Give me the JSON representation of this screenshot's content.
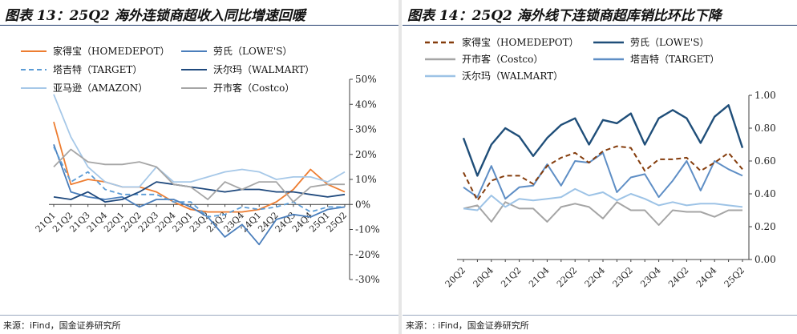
{
  "charts_page": {
    "left_title": "图表 13：25Q2 海外连锁商超收入同比增速回暖",
    "right_title": "图表 14：25Q2 海外线下连锁商超库销比环比下降",
    "left_source": "来源：iFind，国金证券研究所",
    "right_source": "来源：: iFind，国金证券研究所"
  },
  "chart_data": [
    {
      "type": "line",
      "title": "图表 13：25Q2 海外连锁商超收入同比增速回暖",
      "categories": [
        "21Q1",
        "21Q2",
        "21Q3",
        "21Q4",
        "22Q1",
        "22Q2",
        "22Q3",
        "22Q4",
        "23Q1",
        "23Q2",
        "23Q3",
        "23Q4",
        "24Q1",
        "24Q2",
        "24Q3",
        "24Q4",
        "25Q1",
        "25Q2"
      ],
      "ylim": [
        -0.3,
        0.5
      ],
      "yticks": [
        "-30%",
        "-20%",
        "-10%",
        "0%",
        "10%",
        "20%",
        "30%",
        "40%",
        "50%"
      ],
      "ytick_values": [
        -0.3,
        -0.2,
        -0.1,
        0,
        0.1,
        0.2,
        0.3,
        0.4,
        0.5
      ],
      "series": [
        {
          "name": "家得宝（HOMEDEPOT）",
          "color": "#ed7d31",
          "style": "solid",
          "values": [
            0.33,
            0.08,
            0.1,
            0.09,
            0.07,
            0.07,
            0.05,
            0.01,
            -0.02,
            -0.03,
            -0.03,
            -0.03,
            -0.02,
            0.01,
            0.06,
            0.14,
            0.08,
            0.05
          ]
        },
        {
          "name": "劳氏（LOWE'S）",
          "color": "#4a7ebb",
          "style": "solid",
          "values": [
            0.24,
            0.05,
            0.03,
            0.02,
            0.03,
            -0.01,
            0.02,
            0.02,
            -0.01,
            -0.05,
            -0.13,
            -0.08,
            -0.16,
            -0.06,
            -0.04,
            -0.05,
            -0.02,
            -0.01
          ]
        },
        {
          "name": "塔吉特（TARGET）",
          "color": "#5b9bd5",
          "style": "dashed",
          "values": [
            0.23,
            0.09,
            0.13,
            0.06,
            0.04,
            0.04,
            0.04,
            0.01,
            0.01,
            -0.05,
            -0.04,
            -0.01,
            -0.02,
            -0.01,
            0.01,
            -0.03,
            -0.01,
            -0.01
          ]
        },
        {
          "name": "沃尔玛（WALMART）",
          "color": "#1f497d",
          "style": "solid",
          "values": [
            0.03,
            0.02,
            0.05,
            0.01,
            0.02,
            0.05,
            0.09,
            0.08,
            0.07,
            0.06,
            0.05,
            0.06,
            0.06,
            0.05,
            0.05,
            0.04,
            0.03,
            0.04
          ]
        },
        {
          "name": "亚马逊（AMAZON）",
          "color": "#a6c8e8",
          "style": "solid",
          "values": [
            0.44,
            0.27,
            0.15,
            0.09,
            0.07,
            0.07,
            0.15,
            0.09,
            0.09,
            0.11,
            0.13,
            0.14,
            0.13,
            0.1,
            0.11,
            0.11,
            0.09,
            0.13
          ]
        },
        {
          "name": "开市客（Costco）",
          "color": "#a6a6a6",
          "style": "solid",
          "values": [
            0.15,
            0.22,
            0.17,
            0.16,
            0.16,
            0.17,
            0.15,
            0.08,
            0.07,
            0.02,
            0.09,
            0.06,
            0.09,
            0.09,
            0.01,
            0.07,
            0.08,
            0.08
          ]
        }
      ]
    },
    {
      "type": "line",
      "title": "图表 14：25Q2 海外线下连锁商超库销比环比下降",
      "categories": [
        "20Q2",
        "20Q3",
        "20Q4",
        "21Q1",
        "21Q2",
        "21Q3",
        "21Q4",
        "22Q1",
        "22Q2",
        "22Q3",
        "22Q4",
        "23Q1",
        "23Q2",
        "23Q3",
        "23Q4",
        "24Q1",
        "24Q2",
        "24Q3",
        "24Q4",
        "25Q1",
        "25Q2"
      ],
      "xtick_labels": [
        "20Q2",
        "20Q4",
        "21Q2",
        "21Q4",
        "22Q2",
        "22Q4",
        "23Q2",
        "23Q4",
        "24Q2",
        "24Q4",
        "25Q2"
      ],
      "ylim": [
        0.0,
        1.0
      ],
      "yticks": [
        "0.00",
        "0.20",
        "0.40",
        "0.60",
        "0.80",
        "1.00"
      ],
      "ytick_values": [
        0.0,
        0.2,
        0.4,
        0.6,
        0.8,
        1.0
      ],
      "series": [
        {
          "name": "家得宝（HOMEDEPOT）",
          "color": "#843c0c",
          "style": "dashed",
          "values": [
            0.53,
            0.36,
            0.48,
            0.51,
            0.51,
            0.46,
            0.57,
            0.62,
            0.65,
            0.59,
            0.66,
            0.69,
            0.68,
            0.54,
            0.61,
            0.61,
            0.62,
            0.54,
            0.59,
            0.65,
            0.55
          ]
        },
        {
          "name": "劳氏（LOWE'S）",
          "color": "#1f4e79",
          "style": "solid",
          "values": [
            0.74,
            0.51,
            0.7,
            0.8,
            0.75,
            0.63,
            0.74,
            0.82,
            0.86,
            0.7,
            0.85,
            0.83,
            0.89,
            0.7,
            0.86,
            0.91,
            0.86,
            0.71,
            0.87,
            0.94,
            0.68
          ]
        },
        {
          "name": "开市客（Costco）",
          "color": "#a5a5a5",
          "style": "solid",
          "values": [
            0.31,
            0.33,
            0.23,
            0.35,
            0.31,
            0.31,
            0.23,
            0.32,
            0.34,
            0.32,
            0.25,
            0.35,
            0.3,
            0.3,
            0.21,
            0.3,
            0.29,
            0.29,
            0.26,
            0.3,
            0.3
          ]
        },
        {
          "name": "塔吉特（TARGET）",
          "color": "#5e8ec5",
          "style": "solid",
          "values": [
            0.44,
            0.38,
            0.57,
            0.37,
            0.44,
            0.45,
            0.58,
            0.45,
            0.6,
            0.59,
            0.65,
            0.41,
            0.5,
            0.52,
            0.38,
            0.48,
            0.6,
            0.42,
            0.6,
            0.55,
            0.51
          ]
        },
        {
          "name": "沃尔玛（WALMART）",
          "color": "#9dc3e6",
          "style": "solid",
          "values": [
            0.31,
            0.3,
            0.39,
            0.32,
            0.37,
            0.36,
            0.37,
            0.38,
            0.43,
            0.39,
            0.41,
            0.36,
            0.4,
            0.37,
            0.33,
            0.35,
            0.33,
            0.34,
            0.34,
            0.33,
            0.32
          ]
        }
      ]
    }
  ]
}
